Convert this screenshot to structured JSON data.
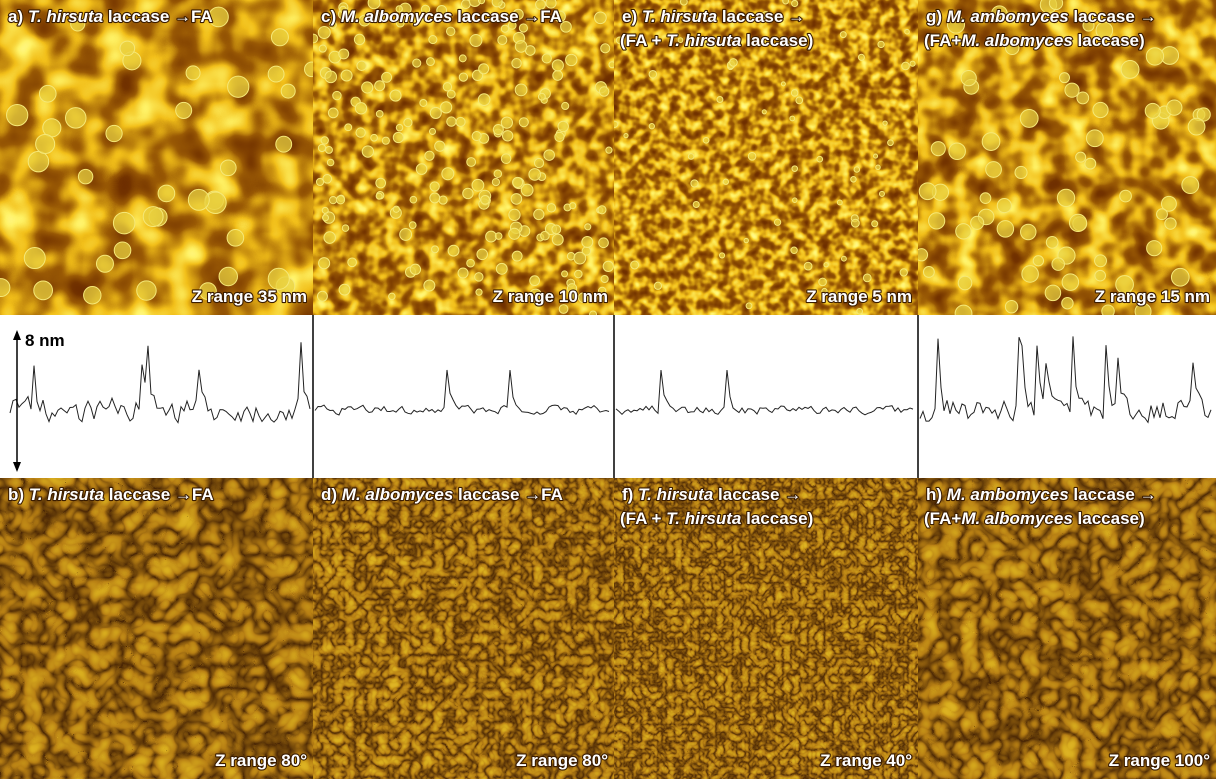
{
  "height_images": [
    {
      "label": [
        [
          {
            "text": "a) "
          },
          {
            "text": "T. hirsuta",
            "italic": true
          },
          {
            "text": " laccase →FA"
          }
        ]
      ],
      "z_range": "Z range 35 nm"
    },
    {
      "label": [
        [
          {
            "text": "c) "
          },
          {
            "text": "M. albomyces",
            "italic": true
          },
          {
            "text": " laccase →FA"
          }
        ]
      ],
      "z_range": "Z range 10 nm"
    },
    {
      "label": [
        [
          {
            "text": "e) "
          },
          {
            "text": "T. hirsuta",
            "italic": true
          },
          {
            "text": " laccase →"
          }
        ],
        [
          {
            "text": "(FA + "
          },
          {
            "text": "T. hirsuta",
            "italic": true
          },
          {
            "text": " laccase)"
          }
        ]
      ],
      "z_range": "Z range 5 nm"
    },
    {
      "label": [
        [
          {
            "text": "g) "
          },
          {
            "text": "M. ambomyces",
            "italic": true
          },
          {
            "text": " laccase →"
          }
        ],
        [
          {
            "text": "(FA+"
          },
          {
            "text": "M. albomyces",
            "italic": true
          },
          {
            "text": " laccase)"
          }
        ]
      ],
      "z_range": "Z range 15 nm"
    }
  ],
  "scale_bar": "8 nm",
  "phase_images": [
    {
      "label": [
        [
          {
            "text": "b) "
          },
          {
            "text": "T. hirsuta",
            "italic": true
          },
          {
            "text": " laccase →FA"
          }
        ]
      ],
      "z_range": "Z range 80°"
    },
    {
      "label": [
        [
          {
            "text": "d) "
          },
          {
            "text": "M. albomyces",
            "italic": true
          },
          {
            "text": " laccase →FA"
          }
        ]
      ],
      "z_range": "Z range 80°"
    },
    {
      "label": [
        [
          {
            "text": "f) "
          },
          {
            "text": "T. hirsuta",
            "italic": true
          },
          {
            "text": " laccase →"
          }
        ],
        [
          {
            "text": "(FA + "
          },
          {
            "text": "T. hirsuta",
            "italic": true
          },
          {
            "text": " laccase)"
          }
        ]
      ],
      "z_range": "Z range 40°"
    },
    {
      "label": [
        [
          {
            "text": "h) "
          },
          {
            "text": "M. ambomyces",
            "italic": true
          },
          {
            "text": " laccase →"
          }
        ],
        [
          {
            "text": "(FA+"
          },
          {
            "text": "M. albomyces",
            "italic": true
          },
          {
            "text": " laccase)"
          }
        ]
      ],
      "z_range": "Z range 100°"
    }
  ]
}
